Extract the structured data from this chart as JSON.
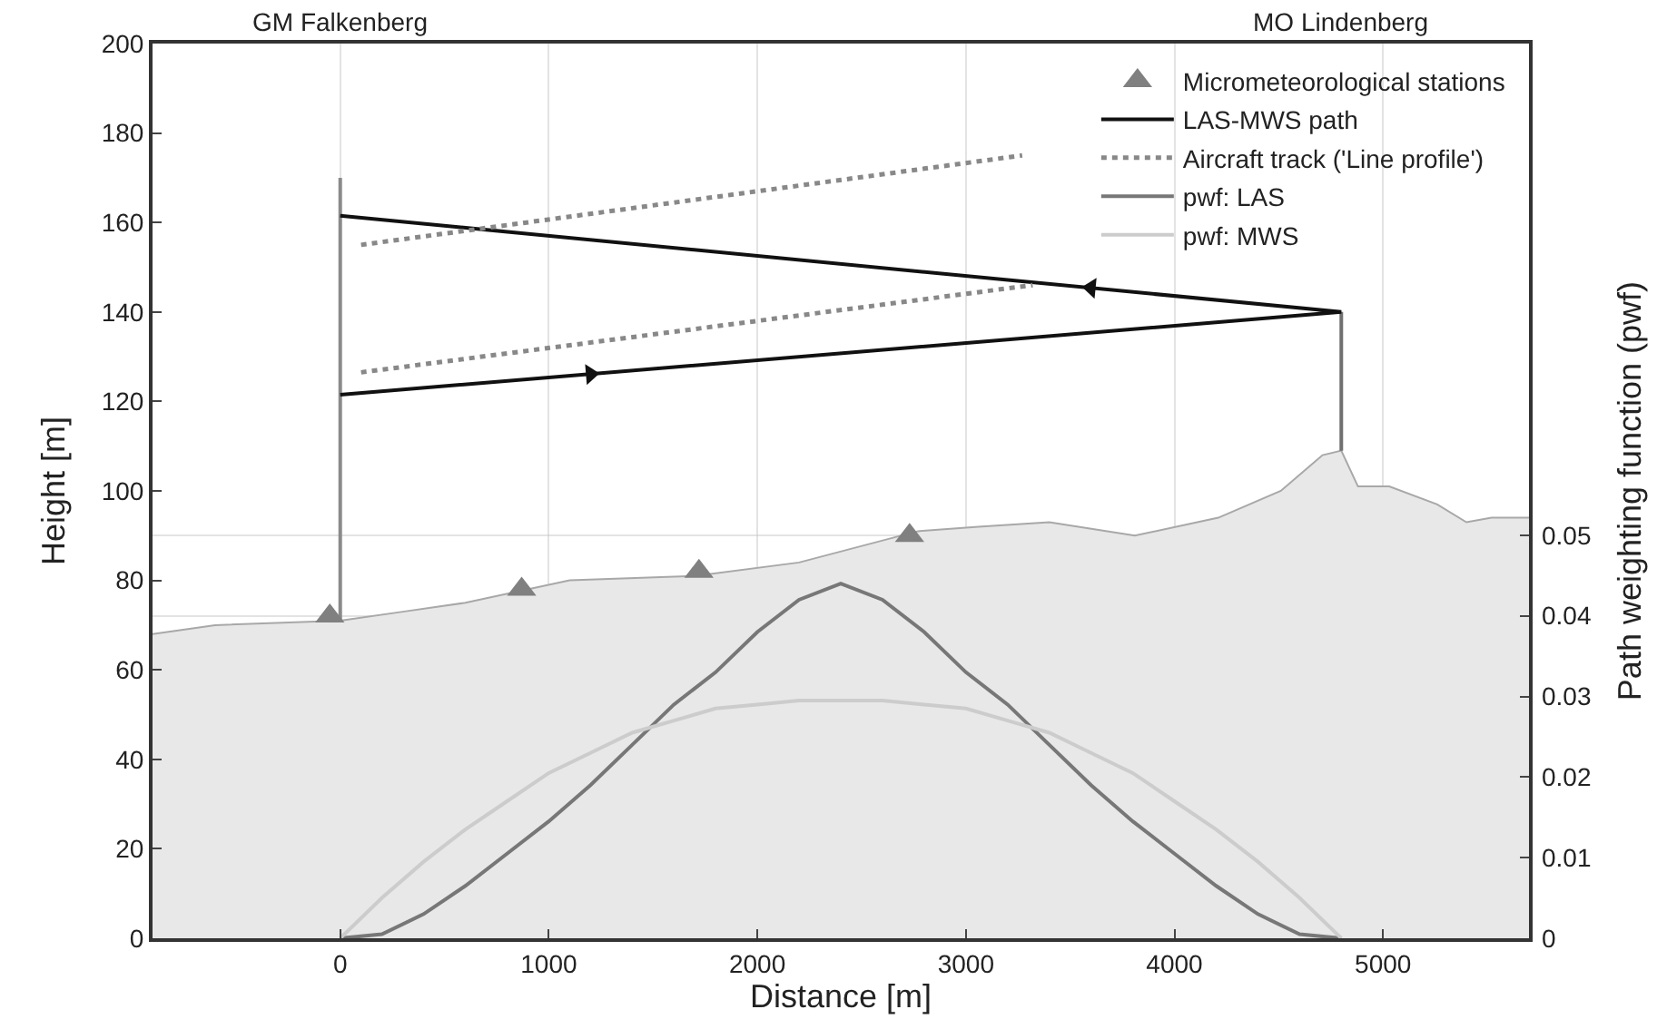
{
  "chart_data": {
    "type": "line",
    "xlabel": "Distance [m]",
    "ylabel": "Height [m]",
    "y2label": "Path weighting function (pwf)",
    "xlim": [
      -900,
      5700
    ],
    "xticks": [
      0,
      1000,
      2000,
      3000,
      4000,
      5000
    ],
    "ylim": [
      0,
      200
    ],
    "yticks": [
      0,
      20,
      40,
      60,
      80,
      100,
      120,
      140,
      160,
      180,
      200
    ],
    "y2lim": [
      0,
      0.111
    ],
    "y2ticks": [
      0,
      0.01,
      0.02,
      0.03,
      0.04,
      0.05
    ],
    "grid": true,
    "legend": "top right",
    "annotations": [
      "GM Falkenberg",
      "MO Lindenberg"
    ],
    "series": [
      {
        "type": "area",
        "color": "#a8a8a8",
        "x": [
          -900,
          -600,
          0,
          300,
          600,
          1100,
          1700,
          2200,
          2770,
          3060,
          3400,
          3810,
          4210,
          4510,
          4710,
          4800,
          4880,
          5030,
          5260,
          5400,
          5520,
          5700
        ],
        "values": [
          68,
          70,
          71,
          73,
          75,
          80,
          81,
          84,
          91,
          92,
          93,
          90,
          94,
          100,
          108,
          109,
          101,
          101,
          97,
          93,
          94,
          94
        ]
      },
      {
        "color": "#8a8a8a",
        "x": [
          0,
          0
        ],
        "values": [
          71,
          170
        ]
      },
      {
        "color": "#707070",
        "x": [
          4800,
          4800
        ],
        "values": [
          109,
          140
        ]
      },
      {
        "type": "scatter",
        "name": "Micrometeorological stations",
        "color": "#808080",
        "marker": "triangle",
        "x": [
          -50,
          870,
          1720,
          2730
        ],
        "values": [
          72,
          78,
          82,
          90
        ]
      },
      {
        "name": "LAS-MWS path",
        "color": "#111111",
        "line_style": "solid",
        "x": [
          0,
          4800,
          0
        ],
        "values": [
          121.5,
          140,
          161.5
        ]
      },
      {
        "type": "scatter",
        "color": "#111111",
        "marker": "triangle",
        "x": [
          1200,
          3600
        ],
        "values": [
          126.1,
          145.4
        ]
      },
      {
        "name": "Aircraft track ('Line profile')",
        "color": "#888888",
        "line_style": "dotted",
        "x": [
          100,
          3320,
          null,
          100,
          3270
        ],
        "values": [
          126.5,
          146,
          null,
          155,
          175
        ]
      },
      {
        "name": "pwf: LAS",
        "color": "#777777",
        "axis": "y2",
        "line_style": "solid",
        "x": [
          0,
          200,
          400,
          600,
          800,
          1000,
          1200,
          1400,
          1600,
          1800,
          2000,
          2200,
          2400,
          2600,
          2800,
          3000,
          3200,
          3400,
          3600,
          3800,
          4000,
          4200,
          4400,
          4600,
          4800
        ],
        "values": [
          0,
          0.0005,
          0.003,
          0.0065,
          0.0105,
          0.0145,
          0.019,
          0.024,
          0.029,
          0.033,
          0.038,
          0.042,
          0.044,
          0.042,
          0.038,
          0.033,
          0.029,
          0.024,
          0.019,
          0.0145,
          0.0105,
          0.0065,
          0.003,
          0.0005,
          0
        ]
      },
      {
        "name": "pwf: MWS",
        "color": "#cccccc",
        "axis": "y2",
        "line_style": "solid",
        "x": [
          0,
          200,
          400,
          600,
          800,
          1000,
          1200,
          1400,
          1600,
          1800,
          2000,
          2200,
          2400,
          2600,
          2800,
          3000,
          3200,
          3400,
          3600,
          3800,
          4000,
          4200,
          4400,
          4600,
          4800
        ],
        "values": [
          0,
          0.005,
          0.0095,
          0.0135,
          0.017,
          0.0205,
          0.023,
          0.0255,
          0.027,
          0.0285,
          0.029,
          0.0295,
          0.0295,
          0.0295,
          0.029,
          0.0285,
          0.027,
          0.0255,
          0.023,
          0.0205,
          0.017,
          0.0135,
          0.0095,
          0.005,
          0
        ]
      }
    ]
  }
}
